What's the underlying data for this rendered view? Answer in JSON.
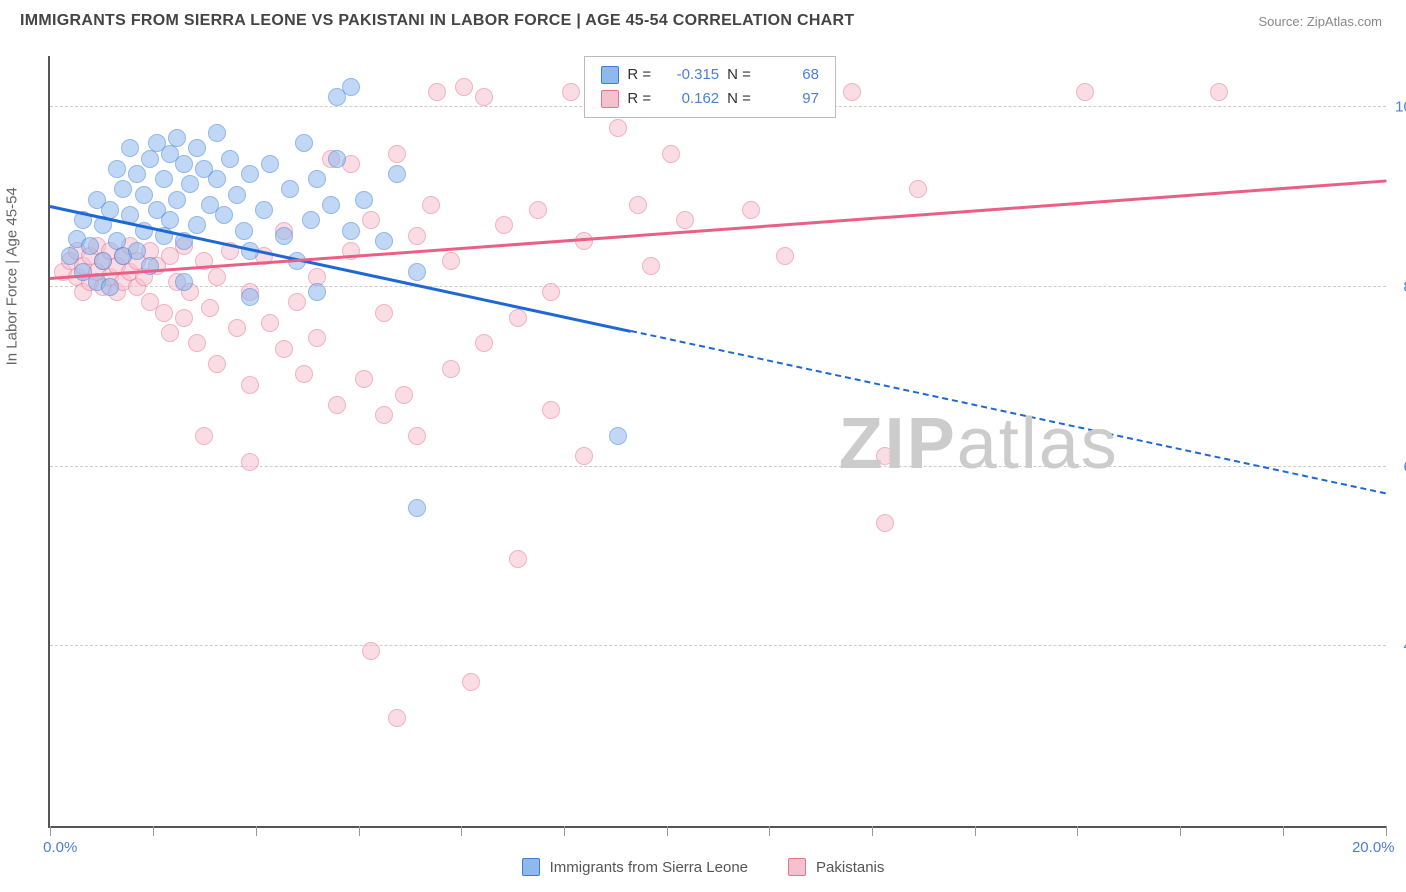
{
  "header": {
    "title": "IMMIGRANTS FROM SIERRA LEONE VS PAKISTANI IN LABOR FORCE | AGE 45-54 CORRELATION CHART",
    "source": "Source: ZipAtlas.com"
  },
  "chart": {
    "type": "scatter",
    "y_axis_label": "In Labor Force | Age 45-54",
    "xlim": [
      0,
      20
    ],
    "ylim": [
      30,
      105
    ],
    "x_ticks": [
      0,
      20
    ],
    "x_tick_labels": [
      "0.0%",
      "20.0%"
    ],
    "x_minor_ticks": [
      0,
      1.54,
      3.08,
      4.62,
      6.15,
      7.69,
      9.23,
      10.77,
      12.31,
      13.85,
      15.38,
      16.92,
      18.46,
      20
    ],
    "y_grid": [
      47.5,
      65.0,
      82.5,
      100.0
    ],
    "y_grid_labels": [
      "47.5%",
      "65.0%",
      "82.5%",
      "100.0%"
    ],
    "background": "#ffffff",
    "grid_color": "#cccccc",
    "axis_color": "#555555",
    "tick_label_color": "#4a7fd6",
    "axis_label_color": "#666666",
    "point_radius": 9,
    "point_opacity": 0.55,
    "series": {
      "blue": {
        "label": "Immigrants from Sierra Leone",
        "fill": "#8db9ee",
        "stroke": "#3b7ed6",
        "R": "-0.315",
        "N": "68",
        "trend": {
          "x1": 0,
          "y1": 90.5,
          "x2": 20,
          "y2": 62.5,
          "solid_until_x": 8.7,
          "color": "#1e68d6",
          "width": 3
        },
        "points": [
          [
            0.3,
            85.5
          ],
          [
            0.4,
            87.2
          ],
          [
            0.5,
            89.0
          ],
          [
            0.5,
            84.0
          ],
          [
            0.6,
            86.5
          ],
          [
            0.7,
            91.0
          ],
          [
            0.7,
            83.0
          ],
          [
            0.8,
            88.5
          ],
          [
            0.8,
            85.0
          ],
          [
            0.9,
            90.0
          ],
          [
            0.9,
            82.5
          ],
          [
            1.0,
            94.0
          ],
          [
            1.0,
            87.0
          ],
          [
            1.1,
            92.0
          ],
          [
            1.1,
            85.5
          ],
          [
            1.2,
            96.0
          ],
          [
            1.2,
            89.5
          ],
          [
            1.3,
            93.5
          ],
          [
            1.3,
            86.0
          ],
          [
            1.4,
            91.5
          ],
          [
            1.4,
            88.0
          ],
          [
            1.5,
            95.0
          ],
          [
            1.5,
            84.5
          ],
          [
            1.6,
            96.5
          ],
          [
            1.6,
            90.0
          ],
          [
            1.7,
            93.0
          ],
          [
            1.7,
            87.5
          ],
          [
            1.8,
            95.5
          ],
          [
            1.8,
            89.0
          ],
          [
            1.9,
            97.0
          ],
          [
            1.9,
            91.0
          ],
          [
            2.0,
            94.5
          ],
          [
            2.0,
            87.0
          ],
          [
            2.1,
            92.5
          ],
          [
            2.2,
            96.0
          ],
          [
            2.2,
            88.5
          ],
          [
            2.3,
            94.0
          ],
          [
            2.4,
            90.5
          ],
          [
            2.5,
            93.0
          ],
          [
            2.5,
            97.5
          ],
          [
            2.6,
            89.5
          ],
          [
            2.7,
            95.0
          ],
          [
            2.8,
            91.5
          ],
          [
            2.9,
            88.0
          ],
          [
            3.0,
            93.5
          ],
          [
            3.0,
            86.0
          ],
          [
            3.2,
            90.0
          ],
          [
            3.3,
            94.5
          ],
          [
            3.5,
            87.5
          ],
          [
            3.6,
            92.0
          ],
          [
            3.7,
            85.0
          ],
          [
            3.8,
            96.5
          ],
          [
            3.9,
            89.0
          ],
          [
            4.0,
            93.0
          ],
          [
            4.0,
            82.0
          ],
          [
            4.2,
            90.5
          ],
          [
            4.3,
            95.0
          ],
          [
            4.3,
            101.0
          ],
          [
            4.5,
            88.0
          ],
          [
            4.7,
            91.0
          ],
          [
            5.0,
            87.0
          ],
          [
            5.2,
            93.5
          ],
          [
            5.5,
            61.0
          ],
          [
            5.5,
            84.0
          ],
          [
            3.0,
            81.5
          ],
          [
            2.0,
            83.0
          ],
          [
            8.5,
            68.0
          ],
          [
            4.5,
            102.0
          ]
        ]
      },
      "pink": {
        "label": "Pakistanis",
        "fill": "#f6c0ce",
        "stroke": "#e6758f",
        "R": "0.162",
        "N": "97",
        "trend": {
          "x1": 0,
          "y1": 83.5,
          "x2": 20,
          "y2": 93.0,
          "solid_until_x": 20,
          "color": "#ea5f85",
          "width": 3
        },
        "points": [
          [
            0.2,
            84.0
          ],
          [
            0.3,
            85.0
          ],
          [
            0.4,
            83.5
          ],
          [
            0.4,
            86.0
          ],
          [
            0.5,
            84.5
          ],
          [
            0.5,
            82.0
          ],
          [
            0.6,
            85.5
          ],
          [
            0.6,
            83.0
          ],
          [
            0.7,
            86.5
          ],
          [
            0.7,
            84.0
          ],
          [
            0.8,
            82.5
          ],
          [
            0.8,
            85.0
          ],
          [
            0.9,
            83.5
          ],
          [
            0.9,
            86.0
          ],
          [
            1.0,
            84.5
          ],
          [
            1.0,
            82.0
          ],
          [
            1.1,
            85.5
          ],
          [
            1.1,
            83.0
          ],
          [
            1.2,
            86.5
          ],
          [
            1.2,
            84.0
          ],
          [
            1.3,
            82.5
          ],
          [
            1.3,
            85.0
          ],
          [
            1.4,
            83.5
          ],
          [
            1.5,
            86.0
          ],
          [
            1.5,
            81.0
          ],
          [
            1.6,
            84.5
          ],
          [
            1.7,
            80.0
          ],
          [
            1.8,
            85.5
          ],
          [
            1.8,
            78.0
          ],
          [
            1.9,
            83.0
          ],
          [
            2.0,
            86.5
          ],
          [
            2.0,
            79.5
          ],
          [
            2.1,
            82.0
          ],
          [
            2.2,
            77.0
          ],
          [
            2.3,
            85.0
          ],
          [
            2.4,
            80.5
          ],
          [
            2.5,
            83.5
          ],
          [
            2.5,
            75.0
          ],
          [
            2.7,
            86.0
          ],
          [
            2.8,
            78.5
          ],
          [
            3.0,
            82.0
          ],
          [
            3.0,
            73.0
          ],
          [
            3.2,
            85.5
          ],
          [
            3.3,
            79.0
          ],
          [
            3.5,
            76.5
          ],
          [
            3.5,
            88.0
          ],
          [
            3.7,
            81.0
          ],
          [
            3.8,
            74.0
          ],
          [
            4.0,
            83.5
          ],
          [
            4.0,
            77.5
          ],
          [
            4.2,
            95.0
          ],
          [
            4.3,
            71.0
          ],
          [
            4.5,
            86.0
          ],
          [
            4.5,
            94.5
          ],
          [
            4.7,
            73.5
          ],
          [
            4.8,
            89.0
          ],
          [
            5.0,
            80.0
          ],
          [
            5.0,
            70.0
          ],
          [
            5.2,
            95.5
          ],
          [
            5.3,
            72.0
          ],
          [
            5.5,
            87.5
          ],
          [
            5.5,
            68.0
          ],
          [
            5.7,
            90.5
          ],
          [
            5.8,
            101.5
          ],
          [
            6.0,
            74.5
          ],
          [
            6.0,
            85.0
          ],
          [
            6.2,
            102.0
          ],
          [
            6.3,
            44.0
          ],
          [
            6.5,
            77.0
          ],
          [
            6.5,
            101.0
          ],
          [
            6.8,
            88.5
          ],
          [
            7.0,
            79.5
          ],
          [
            7.0,
            56.0
          ],
          [
            7.3,
            90.0
          ],
          [
            7.5,
            82.0
          ],
          [
            7.5,
            70.5
          ],
          [
            7.8,
            101.5
          ],
          [
            8.0,
            87.0
          ],
          [
            8.0,
            66.0
          ],
          [
            8.5,
            98.0
          ],
          [
            8.8,
            90.5
          ],
          [
            9.0,
            84.5
          ],
          [
            9.3,
            95.5
          ],
          [
            9.5,
            89.0
          ],
          [
            10.0,
            101.5
          ],
          [
            10.5,
            90.0
          ],
          [
            11.0,
            85.5
          ],
          [
            12.0,
            101.5
          ],
          [
            12.5,
            66.0
          ],
          [
            12.5,
            59.5
          ],
          [
            13.0,
            92.0
          ],
          [
            15.5,
            101.5
          ],
          [
            17.5,
            101.5
          ],
          [
            4.8,
            47.0
          ],
          [
            5.2,
            40.5
          ],
          [
            3.0,
            65.5
          ],
          [
            2.3,
            68.0
          ]
        ]
      }
    },
    "legend_top": {
      "border": "#bbbbbb",
      "rows": [
        {
          "sw": "blue",
          "r_label": "R =",
          "r_val": "-0.315",
          "n_label": "N =",
          "n_val": "68"
        },
        {
          "sw": "pink",
          "r_label": "R =",
          "r_val": "0.162",
          "n_label": "N =",
          "n_val": "97"
        }
      ]
    },
    "watermark": {
      "bold": "ZIP",
      "rest": "atlas",
      "color": "#cccccc"
    },
    "bottom_legend": [
      {
        "sw": "blue",
        "label": "Immigrants from Sierra Leone"
      },
      {
        "sw": "pink",
        "label": "Pakistanis"
      }
    ]
  }
}
